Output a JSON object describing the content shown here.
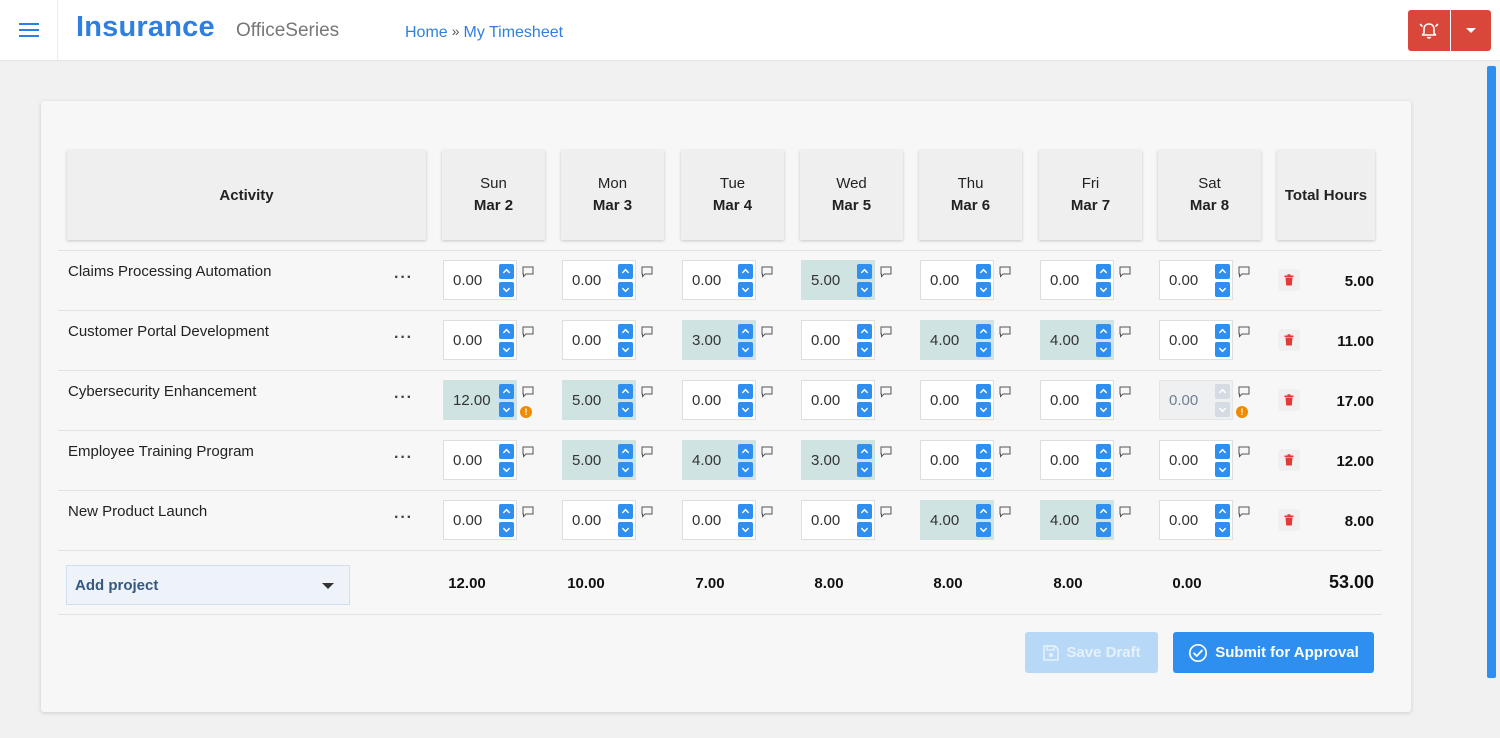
{
  "header": {
    "brand": "Insurance",
    "product": "OfficeSeries",
    "breadcrumb": {
      "home": "Home",
      "separator": "»",
      "current": "My Timesheet"
    }
  },
  "icons": {
    "menu": "hamburger-menu-icon",
    "alarm": "alarm-bell-icon",
    "dropdown": "caret-down-icon",
    "comment": "comment-icon",
    "warning": "info-warning-icon",
    "trash": "trash-icon",
    "save": "floppy-disk-icon",
    "submit": "check-circle-icon"
  },
  "colors": {
    "accent": "#2f8ff0",
    "brand": "#2f7fe0",
    "danger": "#d9473b",
    "filled_cell": "#cfe3e3",
    "warning": "#f08a00"
  },
  "table": {
    "activity_header": "Activity",
    "total_header": "Total Hours",
    "days": [
      {
        "day": "Sun",
        "date": "Mar 2"
      },
      {
        "day": "Mon",
        "date": "Mar 3"
      },
      {
        "day": "Tue",
        "date": "Mar 4"
      },
      {
        "day": "Wed",
        "date": "Mar 5"
      },
      {
        "day": "Thu",
        "date": "Mar 6"
      },
      {
        "day": "Fri",
        "date": "Mar 7"
      },
      {
        "day": "Sat",
        "date": "Mar 8"
      }
    ],
    "more_label": "···",
    "rows": [
      {
        "name": "Claims Processing Automation",
        "hours": [
          "0.00",
          "0.00",
          "0.00",
          "5.00",
          "0.00",
          "0.00",
          "0.00"
        ],
        "total": "5.00"
      },
      {
        "name": "Customer Portal Development",
        "hours": [
          "0.00",
          "0.00",
          "3.00",
          "0.00",
          "4.00",
          "4.00",
          "0.00"
        ],
        "total": "11.00"
      },
      {
        "name": "Cybersecurity Enhancement",
        "hours": [
          "12.00",
          "5.00",
          "0.00",
          "0.00",
          "0.00",
          "0.00",
          "0.00"
        ],
        "total": "17.00",
        "warnings": [
          0,
          6
        ],
        "disabled": [
          6
        ]
      },
      {
        "name": "Employee Training Program",
        "hours": [
          "0.00",
          "5.00",
          "4.00",
          "3.00",
          "0.00",
          "0.00",
          "0.00"
        ],
        "total": "12.00"
      },
      {
        "name": "New Product Launch",
        "hours": [
          "0.00",
          "0.00",
          "0.00",
          "0.00",
          "4.00",
          "4.00",
          "0.00"
        ],
        "total": "8.00"
      }
    ],
    "day_totals": [
      "12.00",
      "10.00",
      "7.00",
      "8.00",
      "8.00",
      "8.00",
      "0.00"
    ],
    "grand_total": "53.00",
    "warning_glyph": "!"
  },
  "actions": {
    "add_project": "Add project",
    "save_draft": "Save Draft",
    "submit": "Submit for Approval"
  }
}
